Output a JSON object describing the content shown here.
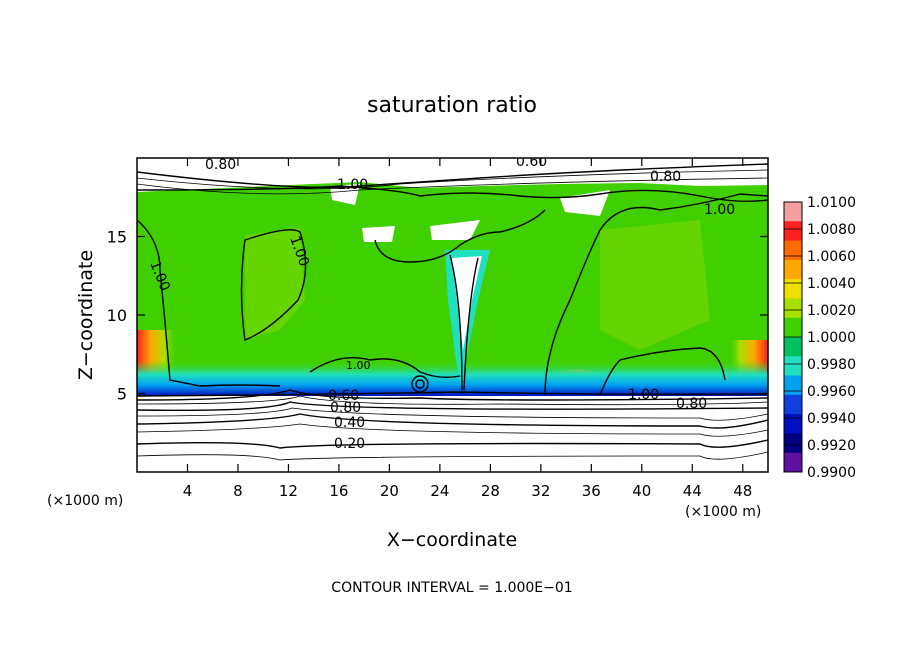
{
  "chart_data": {
    "type": "heatmap",
    "title": "saturation ratio",
    "xlabel": "X−coordinate",
    "ylabel": "Z−coordinate",
    "x_unit_label": "(×1000 m)",
    "y_unit_label": "(×1000 m)",
    "footer": "CONTOUR INTERVAL = 1.000E−01",
    "xlim": [
      0,
      50
    ],
    "ylim": [
      0,
      20
    ],
    "x_ticks": [
      4,
      8,
      12,
      16,
      20,
      24,
      28,
      32,
      36,
      40,
      44,
      48
    ],
    "x_tick_labels": [
      "4",
      "8",
      "12",
      "16",
      "20",
      "24",
      "28",
      "32",
      "36",
      "40",
      "44",
      "48"
    ],
    "y_ticks": [
      5,
      10,
      15
    ],
    "y_tick_labels": [
      "5",
      "10",
      "15"
    ],
    "colorbar": {
      "min": 0.99,
      "max": 1.01,
      "labels": [
        "1.0100",
        "1.0080",
        "1.0060",
        "1.0040",
        "1.0020",
        "1.0000",
        "0.9980",
        "0.9960",
        "0.9940",
        "0.9920",
        "0.9900"
      ],
      "colors": [
        "#f4a0a0",
        "#ff2020",
        "#ff6a00",
        "#ffa800",
        "#f0e000",
        "#a8e000",
        "#40d000",
        "#00c060",
        "#20e0c0",
        "#00a0f0",
        "#1040e0",
        "#0010c0",
        "#000080",
        "#6010a0"
      ]
    },
    "contour_labels": [
      "0.80",
      "0.60",
      "0.80",
      "1.00",
      "1.00",
      "1.00",
      "1.00",
      "1.00",
      "1.00",
      "0.60",
      "0.80",
      "0.40",
      "0.20",
      "0.80"
    ]
  }
}
